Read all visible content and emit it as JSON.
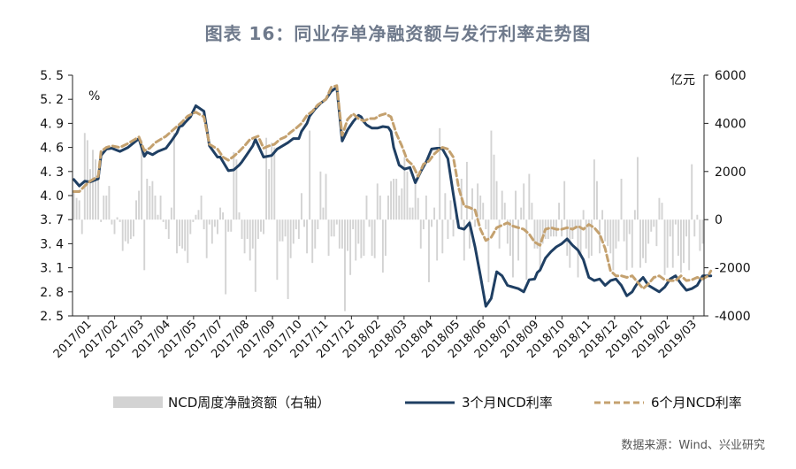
{
  "chart_data": {
    "type": "bar+line",
    "title": "图表 16：同业存单净融资额与发行利率走势图",
    "left_unit": "%",
    "right_unit": "亿元",
    "y_left": {
      "min": 2.5,
      "max": 5.5,
      "ticks": [
        "2.5",
        "2.8",
        "3.1",
        "3.4",
        "3.7",
        "4.0",
        "4.3",
        "4.6",
        "4.9",
        "5.2",
        "5.5"
      ]
    },
    "y_right": {
      "min": -4000,
      "max": 6000,
      "ticks": [
        "-4000",
        "-2000",
        "0",
        "2000",
        "4000",
        "6000"
      ]
    },
    "x_labels": [
      "2017/01",
      "2017/02",
      "2017/03",
      "2017/04",
      "2017/05",
      "2017/07",
      "2017/08",
      "2017/09",
      "2017/10",
      "2017/11",
      "2017/12",
      "2018/02",
      "2018/03",
      "2018/04",
      "2018/05",
      "2018/06",
      "2018/07",
      "2018/09",
      "2018/10",
      "2018/11",
      "2018/12",
      "2019/01",
      "2019/02",
      "2019/03"
    ],
    "series": [
      {
        "name": "NCD周度净融资额（右轴）",
        "type": "bar",
        "axis": "right",
        "color": "#d3d3d3",
        "values": [
          1200,
          900,
          800,
          -600,
          3600,
          3300,
          2100,
          2900,
          2500,
          2000,
          -100,
          1000,
          1000,
          1400,
          -200,
          -600,
          100,
          -100,
          -1300,
          -900,
          -1000,
          -800,
          -700,
          800,
          1200,
          3300,
          -2100,
          1700,
          1400,
          1600,
          1000,
          200,
          1000,
          -100,
          -400,
          -800,
          500,
          3600,
          -1400,
          -1100,
          -1200,
          -1300,
          -1800,
          -600,
          -100,
          200,
          400,
          1000,
          -400,
          -1600,
          -200,
          -1000,
          -300,
          -600,
          500,
          300,
          -3100,
          -500,
          -500,
          2800,
          2500,
          300,
          -800,
          -1400,
          -800,
          -1700,
          -1200,
          -3000,
          -800,
          -500,
          -600,
          3400,
          2100,
          3200,
          3000,
          -2500,
          -900,
          -900,
          -700,
          -3300,
          -1600,
          -1000,
          -400,
          -800,
          1100,
          -300,
          -1400,
          3700,
          -1800,
          -1200,
          -400,
          2000,
          500,
          1900,
          -1500,
          -700,
          -700,
          -200,
          -1200,
          -1200,
          -3800,
          -1300,
          -2300,
          -400,
          -1700,
          -1000,
          -1600,
          -1500,
          1000,
          -300,
          -1500,
          -1600,
          1500,
          1000,
          -2200,
          -1500,
          1000,
          1600,
          1700,
          1700,
          1000,
          1300,
          2600,
          2000,
          500,
          500,
          1700,
          900,
          -1200,
          -400,
          1000,
          -2600,
          -300,
          500,
          -1700,
          3800,
          -1400,
          1100,
          -800,
          800,
          -700,
          200,
          -300,
          1700,
          -1700,
          2400,
          -1200,
          1300,
          -300,
          1500,
          1000,
          700,
          -400,
          -2600,
          3700,
          2700,
          1600,
          -1200,
          1200,
          700,
          -1000,
          -1500,
          -2400,
          1200,
          -1700,
          500,
          1500,
          -2500,
          1900,
          700,
          -1200,
          -1200,
          -2000,
          -1000,
          -800,
          -800,
          -700,
          -700,
          -700,
          700,
          -700,
          1600,
          -1500,
          -2000,
          -800,
          -300,
          -2400,
          -1500,
          400,
          -1200,
          -1600,
          -1500,
          2500,
          1600,
          -1400,
          400,
          -900,
          -1100,
          -1400,
          -2100,
          -1200,
          -900,
          1700,
          -900,
          -2100,
          -600,
          -2000,
          400,
          2600,
          -2000,
          -1600,
          -1800,
          -1000,
          -500,
          -300,
          -1100,
          900,
          700,
          -2300,
          -2000,
          -700,
          -2000,
          -200,
          -1500,
          -2200,
          -1800,
          -700,
          -2100,
          2300,
          -700,
          200,
          -1300,
          -1000
        ]
      },
      {
        "name": "3个月NCD利率",
        "type": "line",
        "axis": "left",
        "color": "#1f3f63",
        "dash": "solid",
        "x": [
          0,
          2,
          4,
          6,
          9,
          10,
          12,
          14,
          17,
          20,
          24,
          26,
          27,
          29,
          31,
          34,
          36,
          38,
          39,
          40,
          41,
          43,
          45,
          48,
          50,
          53,
          54,
          57,
          59,
          61,
          62,
          64,
          66,
          67,
          70,
          73,
          75,
          77,
          79,
          81,
          83,
          84,
          86,
          87,
          89,
          91,
          93,
          95,
          97,
          99,
          101,
          103,
          105,
          106,
          107,
          108,
          109,
          110,
          112,
          114,
          116,
          117,
          118,
          120,
          122,
          124,
          126,
          128,
          130,
          132,
          134,
          135,
          136,
          138,
          140,
          142,
          144,
          146,
          148,
          150,
          152,
          154,
          156,
          158,
          160,
          161,
          162,
          164,
          166,
          168,
          170,
          171,
          172,
          174,
          176,
          178,
          180,
          182,
          184,
          186,
          188,
          190,
          192,
          194,
          196,
          198,
          200,
          202,
          204,
          206,
          207,
          208,
          210,
          212,
          214,
          216,
          218,
          220,
          222,
          224,
          226,
          228,
          230,
          232,
          234,
          235
        ],
        "y": [
          4.2,
          4.12,
          4.18,
          4.17,
          4.21,
          4.5,
          4.58,
          4.59,
          4.55,
          4.6,
          4.71,
          4.49,
          4.54,
          4.51,
          4.55,
          4.59,
          4.68,
          4.78,
          4.86,
          4.87,
          4.91,
          4.98,
          5.12,
          5.05,
          4.62,
          4.48,
          4.48,
          4.31,
          4.32,
          4.38,
          4.42,
          4.52,
          4.62,
          4.7,
          4.48,
          4.5,
          4.58,
          4.62,
          4.66,
          4.71,
          4.71,
          4.8,
          4.9,
          4.99,
          5.08,
          5.15,
          5.2,
          5.3,
          5.35,
          4.68,
          4.82,
          4.92,
          5.0,
          4.98,
          4.92,
          4.88,
          4.86,
          4.84,
          4.84,
          4.86,
          4.85,
          4.8,
          4.6,
          4.38,
          4.33,
          4.35,
          4.16,
          4.3,
          4.42,
          4.58,
          4.59,
          4.59,
          4.58,
          4.46,
          4.02,
          3.6,
          3.58,
          3.66,
          3.36,
          3.0,
          2.62,
          2.72,
          3.05,
          3.0,
          2.88,
          2.87,
          2.86,
          2.84,
          2.8,
          2.95,
          2.96,
          3.04,
          3.07,
          3.22,
          3.3,
          3.36,
          3.4,
          3.46,
          3.38,
          3.32,
          3.2,
          2.98,
          2.94,
          2.96,
          2.88,
          2.94,
          2.96,
          2.88,
          2.75,
          2.8,
          2.86,
          2.91,
          2.98,
          2.88,
          2.84,
          2.8,
          2.86,
          2.96,
          3.0,
          2.9,
          2.82,
          2.84,
          2.88,
          3.0,
          3.0,
          3.0
        ]
      },
      {
        "name": "6个月NCD利率",
        "type": "line",
        "axis": "left",
        "color": "#c4a16f",
        "dash": "dashed",
        "x": [
          0,
          2,
          4,
          6,
          9,
          10,
          12,
          14,
          17,
          20,
          24,
          26,
          28,
          30,
          32,
          34,
          36,
          38,
          40,
          42,
          45,
          48,
          50,
          53,
          55,
          57,
          59,
          61,
          63,
          65,
          68,
          70,
          72,
          74,
          76,
          78,
          80,
          82,
          84,
          86,
          88,
          90,
          93,
          95,
          97,
          99,
          101,
          103,
          105,
          107,
          109,
          111,
          113,
          115,
          117,
          119,
          121,
          123,
          125,
          127,
          129,
          131,
          133,
          135,
          136,
          138,
          140,
          142,
          144,
          146,
          148,
          150,
          152,
          154,
          156,
          158,
          160,
          162,
          164,
          166,
          168,
          170,
          172,
          174,
          176,
          178,
          180,
          182,
          184,
          186,
          188,
          190,
          192,
          194,
          196,
          198,
          200,
          202,
          204,
          206,
          208,
          210,
          212,
          214,
          216,
          218,
          220,
          222,
          224,
          226,
          228,
          230,
          232,
          234,
          235
        ],
        "y": [
          4.05,
          4.05,
          4.12,
          4.18,
          4.24,
          4.55,
          4.6,
          4.62,
          4.6,
          4.65,
          4.73,
          4.56,
          4.59,
          4.66,
          4.7,
          4.74,
          4.8,
          4.86,
          4.92,
          4.99,
          5.04,
          4.98,
          4.64,
          4.58,
          4.48,
          4.44,
          4.49,
          4.55,
          4.62,
          4.7,
          4.74,
          4.59,
          4.62,
          4.64,
          4.7,
          4.73,
          4.79,
          4.84,
          4.9,
          5.0,
          5.05,
          5.13,
          5.2,
          5.35,
          5.37,
          4.75,
          4.95,
          5.02,
          4.96,
          4.93,
          4.96,
          4.96,
          5.0,
          5.02,
          4.98,
          4.77,
          4.62,
          4.44,
          4.38,
          4.24,
          4.39,
          4.43,
          4.52,
          4.58,
          4.6,
          4.58,
          4.48,
          4.09,
          3.87,
          3.85,
          3.82,
          3.58,
          3.44,
          3.48,
          3.6,
          3.63,
          3.66,
          3.62,
          3.6,
          3.58,
          3.52,
          3.42,
          3.38,
          3.58,
          3.6,
          3.58,
          3.58,
          3.6,
          3.58,
          3.62,
          3.58,
          3.64,
          3.6,
          3.52,
          3.34,
          3.06,
          3.0,
          3.0,
          2.98,
          3.0,
          2.92,
          2.84,
          2.9,
          2.98,
          3.0,
          2.95,
          2.94,
          2.94,
          3.0,
          2.94,
          2.95,
          2.98,
          2.96,
          3.0,
          3.06
        ]
      }
    ],
    "legend_placement": "bottom",
    "grid": false,
    "source": "数据来源：Wind、兴业研究"
  }
}
